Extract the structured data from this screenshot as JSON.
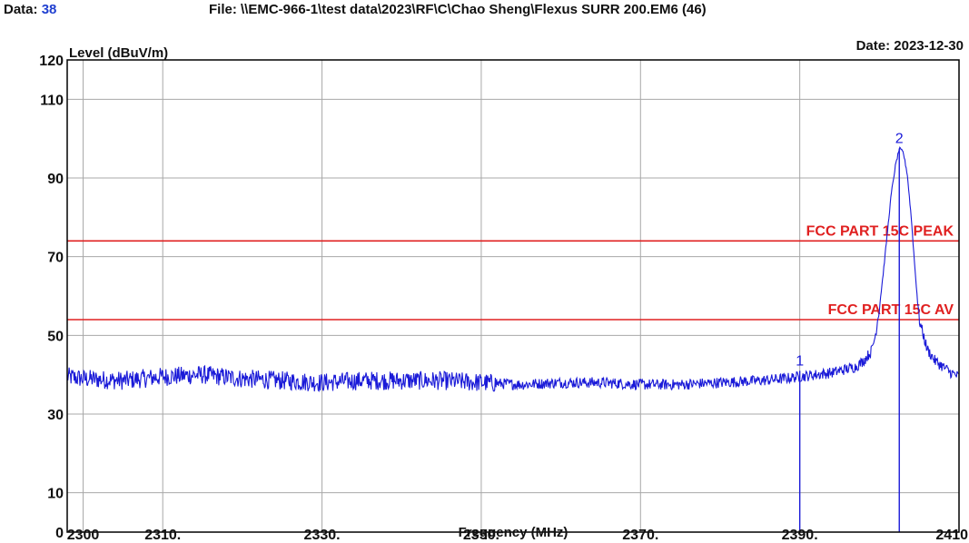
{
  "header": {
    "data_label": "Data:",
    "data_value": "38",
    "file_label": "File:",
    "file_path": "\\\\EMC-966-1\\test data\\2023\\RF\\C\\Chao Sheng\\Flexus SURR 200.EM6  (46)",
    "date_label": "Date:",
    "date_value": "2023-12-30"
  },
  "chart_data": {
    "type": "line",
    "xlabel": "Frequency (MHz)",
    "ylabel": "Level (dBuV/m)",
    "xlim": [
      2298,
      2410
    ],
    "ylim": [
      0,
      120
    ],
    "x_ticks": [
      2300,
      2310,
      2330,
      2350,
      2370,
      2390,
      2410
    ],
    "x_tick_labels": [
      "2300",
      "2310.",
      "2330.",
      "2350.",
      "2370.",
      "2390.",
      "2410"
    ],
    "y_ticks": [
      0,
      10,
      30,
      50,
      70,
      90,
      110,
      120
    ],
    "y_tick_labels": [
      "0",
      "10",
      "30",
      "50",
      "70",
      "90",
      "110",
      "120"
    ],
    "grid": true,
    "limit_lines": [
      {
        "label": "FCC PART 15C PEAK",
        "value": 74,
        "color": "#e02020"
      },
      {
        "label": "FCC PART 15C  AV",
        "value": 54,
        "color": "#e02020"
      }
    ],
    "markers": [
      {
        "label": "1",
        "x": 2390.0,
        "y": 41.0
      },
      {
        "label": "2",
        "x": 2402.5,
        "y": 97.5
      }
    ],
    "series": [
      {
        "color": "#1a1ad8",
        "x": [
          2298,
          2300,
          2305,
          2310,
          2315,
          2320,
          2325,
          2330,
          2335,
          2340,
          2345,
          2350,
          2355,
          2360,
          2365,
          2370,
          2375,
          2380,
          2385,
          2388,
          2390,
          2392,
          2394,
          2396,
          2397,
          2398,
          2399,
          2399.5,
          2400,
          2400.5,
          2401,
          2401.5,
          2402,
          2402.5,
          2403,
          2403.5,
          2404,
          2404.5,
          2405,
          2406,
          2407,
          2408,
          2409,
          2410
        ],
        "values": [
          39.5,
          39.0,
          38.5,
          39.5,
          40.0,
          39.0,
          38.5,
          38.0,
          38.5,
          38.5,
          38.5,
          38.0,
          37.5,
          38.0,
          38.0,
          37.5,
          37.5,
          38.0,
          38.5,
          39.0,
          39.5,
          40.0,
          40.5,
          41.5,
          42.0,
          43.5,
          46.0,
          50.0,
          57.0,
          66.0,
          76.0,
          86.0,
          93.0,
          97.5,
          96.5,
          91.0,
          80.0,
          66.0,
          54.0,
          46.5,
          43.5,
          42.0,
          40.5,
          39.5
        ]
      }
    ]
  }
}
